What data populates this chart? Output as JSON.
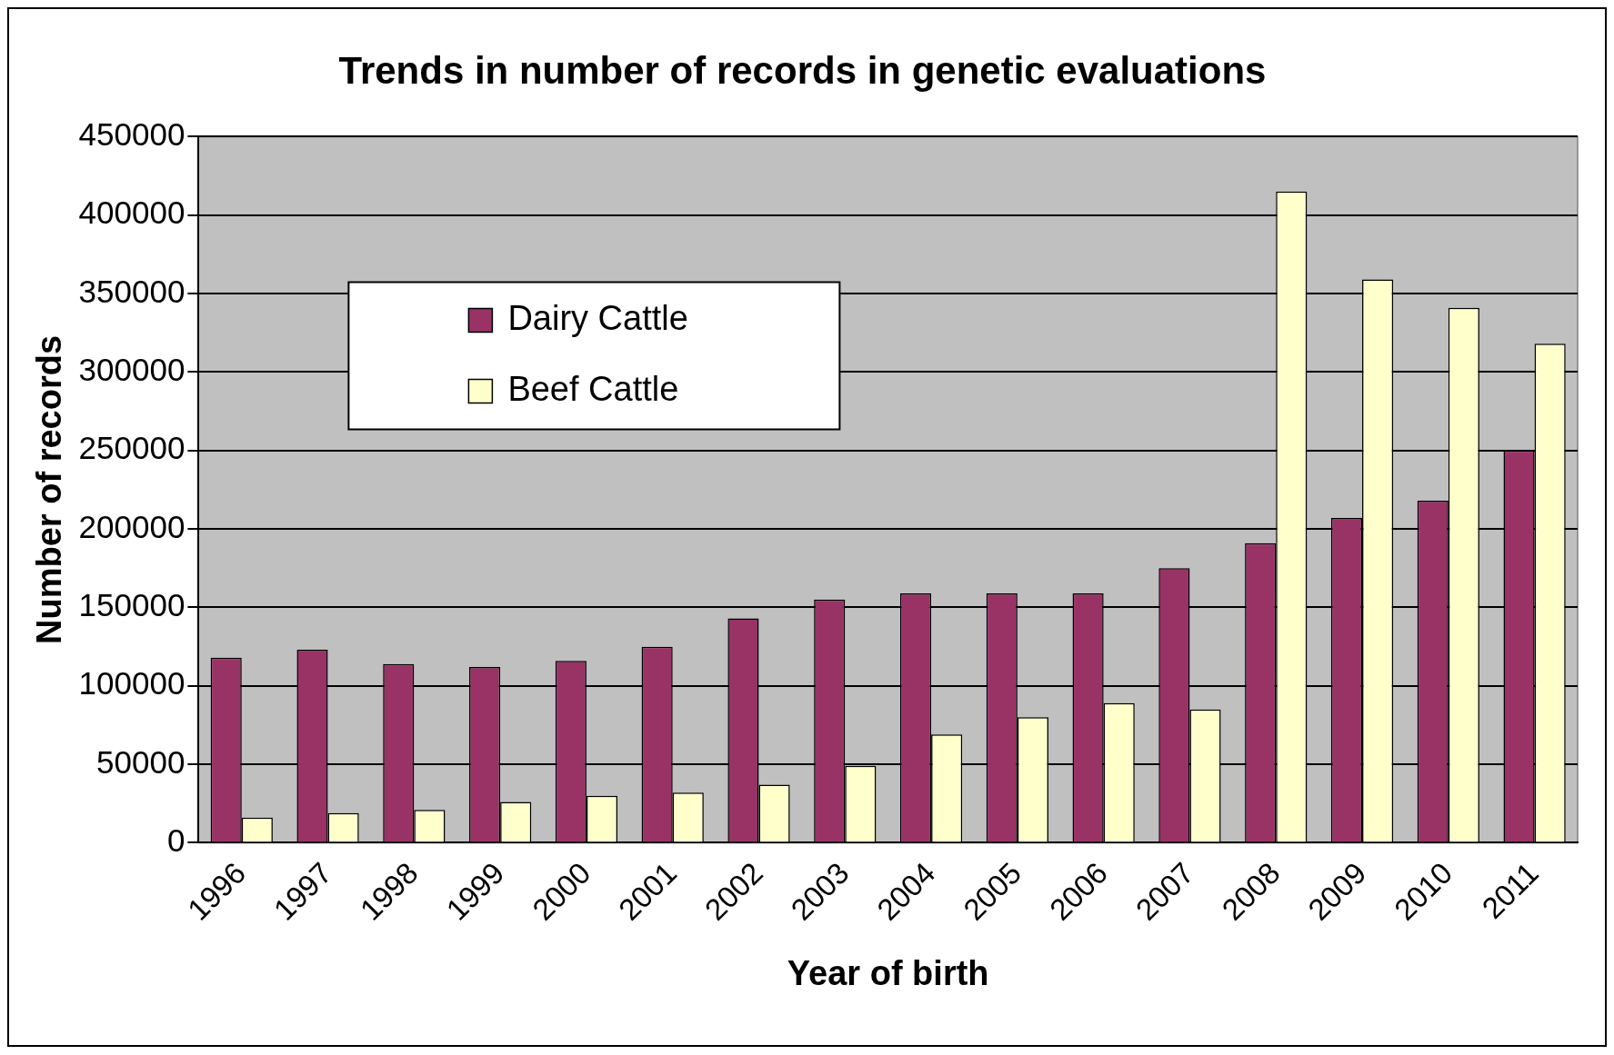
{
  "chart_data": {
    "type": "bar",
    "title": "Trends in number of records in genetic evaluations",
    "xlabel": "Year of birth",
    "ylabel": "Number of records",
    "categories": [
      "1996",
      "1997",
      "1998",
      "1999",
      "2000",
      "2001",
      "2002",
      "2003",
      "2004",
      "2005",
      "2006",
      "2007",
      "2008",
      "2009",
      "2010",
      "2011"
    ],
    "series": [
      {
        "name": "Dairy Cattle",
        "color": "#993366",
        "values": [
          118000,
          123000,
          114000,
          112000,
          116000,
          125000,
          143000,
          155000,
          159000,
          159000,
          159000,
          175000,
          191000,
          207000,
          218000,
          250000
        ]
      },
      {
        "name": "Beef Cattle",
        "color": "#ffffcc",
        "values": [
          16000,
          19000,
          21000,
          26000,
          30000,
          32000,
          37000,
          49000,
          69000,
          80000,
          89000,
          85000,
          415000,
          359000,
          341000,
          318000
        ]
      }
    ],
    "ylim": [
      0,
      450000
    ],
    "yticks": [
      0,
      50000,
      100000,
      150000,
      200000,
      250000,
      300000,
      350000,
      400000,
      450000
    ],
    "grid": "y",
    "legend": "top left"
  }
}
